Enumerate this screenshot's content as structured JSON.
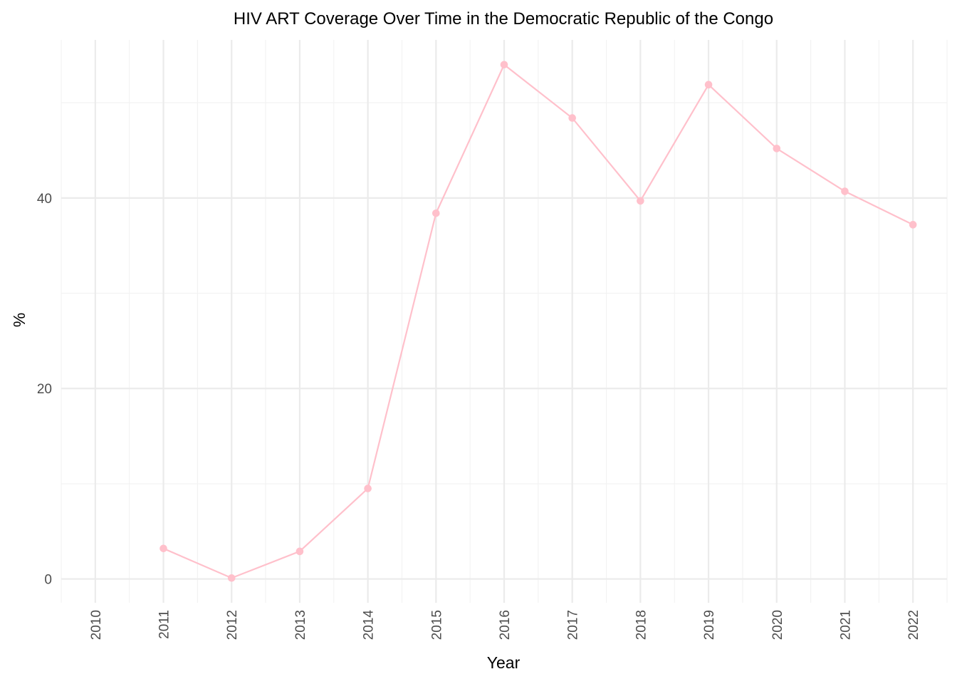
{
  "chart_data": {
    "type": "line",
    "title": "HIV ART Coverage Over Time in the Democratic Republic of the Congo",
    "xlabel": "Year",
    "ylabel": "%",
    "x": [
      2011,
      2012,
      2013,
      2014,
      2015,
      2016,
      2017,
      2018,
      2019,
      2020,
      2021,
      2022
    ],
    "series": [
      {
        "values": [
          3.2,
          0.1,
          2.9,
          9.5,
          38.4,
          54.0,
          48.4,
          39.7,
          51.9,
          45.2,
          40.7,
          37.2
        ]
      }
    ],
    "x_ticks": [
      "2010",
      "2011",
      "2012",
      "2013",
      "2014",
      "2015",
      "2016",
      "2017",
      "2018",
      "2019",
      "2020",
      "2021",
      "2022"
    ],
    "y_ticks": [
      "0",
      "20",
      "40"
    ],
    "xlim": [
      2009.5,
      2022.5
    ],
    "ylim": [
      -2.5,
      56.6
    ],
    "grid": true,
    "legend": "none",
    "line_color": "#FFC0CB"
  }
}
